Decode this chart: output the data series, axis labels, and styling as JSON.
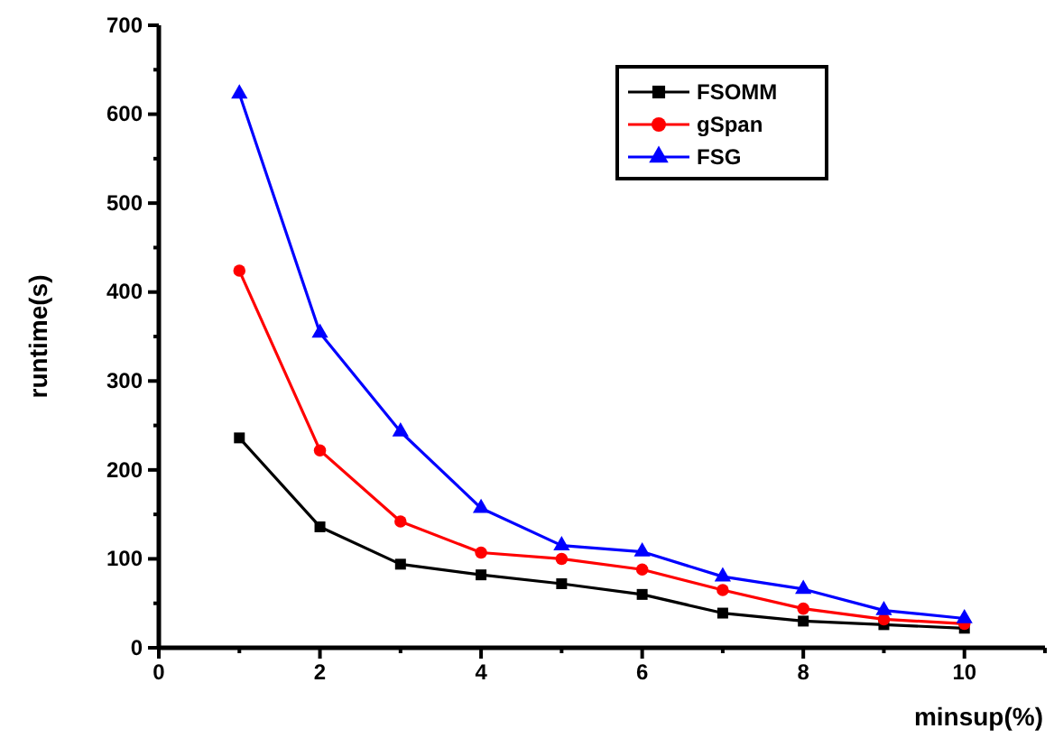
{
  "chart_data": {
    "type": "line",
    "xlabel": "minsup(%)",
    "ylabel": "runtime(s)",
    "x": [
      1,
      2,
      3,
      4,
      5,
      6,
      7,
      8,
      9,
      10
    ],
    "xlim": [
      0,
      11
    ],
    "xticks": [
      0,
      {
        "value": 1,
        "label": null
      },
      2,
      {
        "value": 3,
        "label": null
      },
      4,
      {
        "value": 5,
        "label": null
      },
      6,
      {
        "value": 7,
        "label": null
      },
      8,
      {
        "value": 9,
        "label": null
      },
      10,
      {
        "value": 11,
        "label": null
      }
    ],
    "ylim": [
      0,
      700
    ],
    "yticks": [
      0,
      {
        "value": 50,
        "label": null
      },
      100,
      {
        "value": 150,
        "label": null
      },
      200,
      {
        "value": 250,
        "label": null
      },
      300,
      {
        "value": 350,
        "label": null
      },
      400,
      {
        "value": 450,
        "label": null
      },
      500,
      {
        "value": 550,
        "label": null
      },
      600,
      {
        "value": 650,
        "label": null
      },
      700
    ],
    "grid": false,
    "legend": "top right",
    "line_style": "solid",
    "series": [
      {
        "name": "FSOMM",
        "color": "#000000",
        "marker": "square",
        "values": [
          236,
          136,
          94,
          82,
          72,
          60,
          39,
          30,
          26,
          22
        ]
      },
      {
        "name": "gSpan",
        "color": "#ff0000",
        "marker": "circle",
        "values": [
          424,
          222,
          142,
          107,
          100,
          88,
          65,
          44,
          32,
          27
        ]
      },
      {
        "name": "FSG",
        "color": "#0000ff",
        "marker": "triangle",
        "values": [
          623,
          354,
          243,
          157,
          115,
          108,
          80,
          66,
          42,
          33
        ]
      }
    ]
  }
}
